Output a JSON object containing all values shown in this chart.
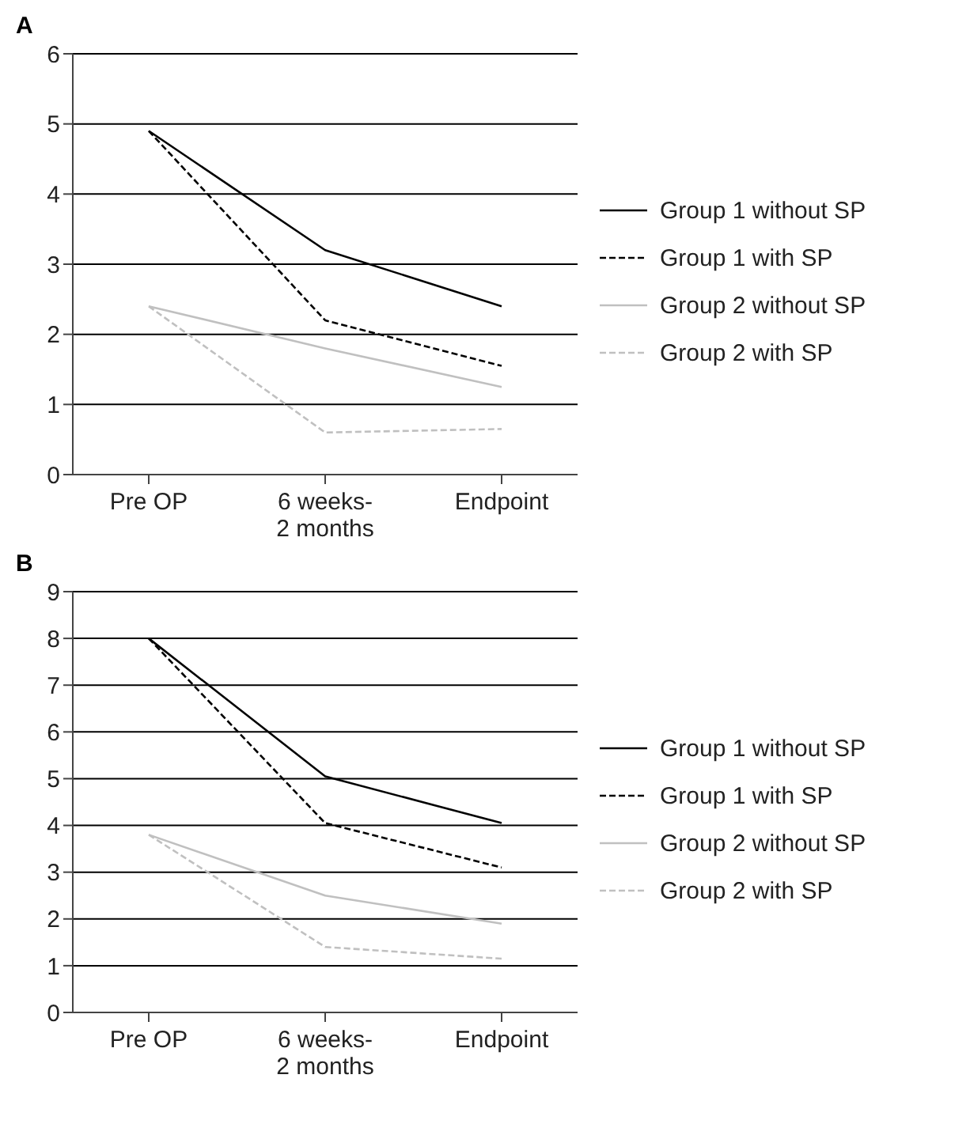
{
  "chart_data": [
    {
      "type": "line",
      "title": "A",
      "categories": [
        "Pre OP",
        "6 weeks- 2 months",
        "Endpoint"
      ],
      "series": [
        {
          "name": "Group 1 without SP",
          "color": "#000000",
          "line_style": "solid",
          "values": [
            4.9,
            3.2,
            2.4
          ]
        },
        {
          "name": "Group 1 with SP",
          "color": "#000000",
          "line_style": "dashed",
          "values": [
            4.9,
            2.2,
            1.55
          ]
        },
        {
          "name": "Group 2 without SP",
          "color": "#c0c0c0",
          "line_style": "solid",
          "values": [
            2.4,
            1.8,
            1.25
          ]
        },
        {
          "name": "Group 2 with SP",
          "color": "#c0c0c0",
          "line_style": "dashed",
          "values": [
            2.4,
            0.6,
            0.65
          ]
        }
      ],
      "ylim": [
        0,
        6
      ],
      "yticks": [
        0,
        1,
        2,
        3,
        4,
        5,
        6
      ],
      "grid": "y",
      "legend": "right",
      "marker": "none"
    },
    {
      "type": "line",
      "title": "B",
      "categories": [
        "Pre OP",
        "6 weeks- 2 months",
        "Endpoint"
      ],
      "series": [
        {
          "name": "Group 1 without SP",
          "color": "#000000",
          "line_style": "solid",
          "values": [
            8.0,
            5.05,
            4.05
          ]
        },
        {
          "name": "Group 1 with SP",
          "color": "#000000",
          "line_style": "dashed",
          "values": [
            8.0,
            4.05,
            3.1
          ]
        },
        {
          "name": "Group 2 without SP",
          "color": "#c0c0c0",
          "line_style": "solid",
          "values": [
            3.8,
            2.5,
            1.9
          ]
        },
        {
          "name": "Group 2 with SP",
          "color": "#c0c0c0",
          "line_style": "dashed",
          "values": [
            3.8,
            1.4,
            1.15
          ]
        }
      ],
      "ylim": [
        0,
        9
      ],
      "yticks": [
        0,
        1,
        2,
        3,
        4,
        5,
        6,
        7,
        8,
        9
      ],
      "grid": "y",
      "legend": "right",
      "marker": "none"
    }
  ]
}
